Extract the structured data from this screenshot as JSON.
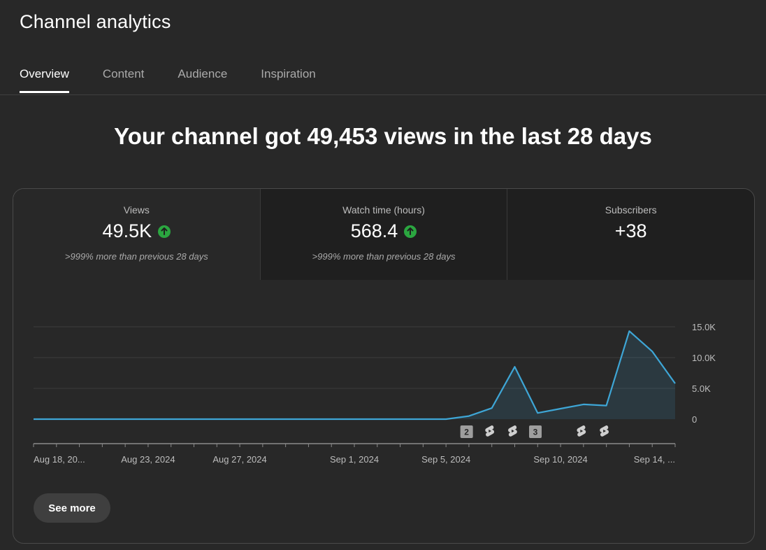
{
  "header": {
    "title": "Channel analytics"
  },
  "tabs": [
    {
      "label": "Overview",
      "active": true
    },
    {
      "label": "Content",
      "active": false
    },
    {
      "label": "Audience",
      "active": false
    },
    {
      "label": "Inspiration",
      "active": false
    }
  ],
  "headline": "Your channel got 49,453 views in the last 28 days",
  "metrics": [
    {
      "label": "Views",
      "value": "49.5K",
      "trend_icon": "arrow-up-icon",
      "note": ">999% more than previous 28 days"
    },
    {
      "label": "Watch time (hours)",
      "value": "568.4",
      "trend_icon": "arrow-up-icon",
      "note": ">999% more than previous 28 days"
    },
    {
      "label": "Subscribers",
      "value": "+38"
    }
  ],
  "colors": {
    "line": "#3ea6d6",
    "trend_up": "#2ba640",
    "background": "#282828"
  },
  "chart_data": {
    "type": "area",
    "series": [
      {
        "values": [
          0,
          0,
          0,
          0,
          0,
          0,
          0,
          0,
          0,
          0,
          0,
          0,
          0,
          0,
          0,
          0,
          0,
          0,
          0,
          500,
          1800,
          8500,
          1000,
          1700,
          2400,
          2200,
          14300,
          11000,
          5800
        ]
      }
    ],
    "y_ticks": [
      "15.0K",
      "10.0K",
      "5.0K",
      "0"
    ],
    "y_tick_values": [
      15000,
      10000,
      5000,
      0
    ],
    "ylim": [
      0,
      15000
    ],
    "x_tick_labels": [
      "Aug 18, 20...",
      "Aug 23, 2024",
      "Aug 27, 2024",
      "Sep 1, 2024",
      "Sep 5, 2024",
      "Sep 10, 2024",
      "Sep 14, ..."
    ],
    "x_tick_indices": [
      0,
      5,
      9,
      14,
      18,
      23,
      27
    ],
    "grid": true,
    "markers": [
      {
        "index": 18.9,
        "type": "count",
        "label": "2"
      },
      {
        "index": 19.9,
        "type": "shorts-icon"
      },
      {
        "index": 20.9,
        "type": "shorts-icon"
      },
      {
        "index": 21.9,
        "type": "count",
        "label": "3"
      },
      {
        "index": 23.9,
        "type": "shorts-icon"
      },
      {
        "index": 24.9,
        "type": "shorts-icon"
      }
    ]
  },
  "actions": {
    "see_more": "See more"
  }
}
